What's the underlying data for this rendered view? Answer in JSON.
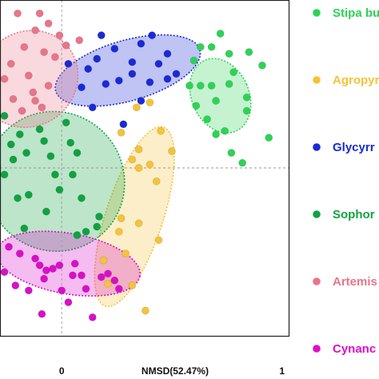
{
  "chart_data": {
    "type": "scatter",
    "xlabel": "NMSD(52.47%)",
    "x_ticks": [
      "0",
      "1"
    ],
    "xlim": [
      -0.28,
      1.03
    ],
    "ylim": [
      -1.0,
      1.0
    ],
    "reference_lines": {
      "x": 0,
      "y": 0
    },
    "grid": false,
    "legend_position": "right",
    "series": [
      {
        "name": "Stipa bu",
        "color": "#2ed356",
        "ellipse": {
          "cx": 0.72,
          "cy": 0.43,
          "rx": 0.13,
          "ry": 0.23,
          "angle": -24
        },
        "points": [
          [
            0.6,
            0.64
          ],
          [
            0.63,
            0.72
          ],
          [
            0.68,
            0.72
          ],
          [
            0.72,
            0.8
          ],
          [
            0.76,
            0.68
          ],
          [
            0.58,
            0.49
          ],
          [
            0.63,
            0.49
          ],
          [
            0.68,
            0.49
          ],
          [
            0.7,
            0.4
          ],
          [
            0.61,
            0.37
          ],
          [
            0.66,
            0.29
          ],
          [
            0.7,
            0.2
          ],
          [
            0.74,
            0.22
          ],
          [
            0.77,
            0.09
          ],
          [
            0.82,
            0.03
          ],
          [
            0.85,
            0.69
          ],
          [
            0.78,
            0.57
          ],
          [
            0.84,
            0.42
          ],
          [
            0.84,
            0.34
          ],
          [
            0.91,
            0.61
          ],
          [
            0.94,
            0.18
          ],
          [
            0.76,
            0.5
          ]
        ]
      },
      {
        "name": "Agropyr",
        "color": "#f4c33a",
        "ellipse": {
          "cx": 0.33,
          "cy": -0.29,
          "rx": 0.13,
          "ry": 0.56,
          "angle": 18
        },
        "points": [
          [
            0.27,
            0.21
          ],
          [
            0.35,
            0.11
          ],
          [
            0.34,
            0.36
          ],
          [
            0.4,
            0.39
          ],
          [
            0.45,
            0.22
          ],
          [
            0.4,
            0.02
          ],
          [
            0.32,
            0.05
          ],
          [
            0.35,
            0.0
          ],
          [
            0.5,
            0.1
          ],
          [
            0.35,
            -0.33
          ],
          [
            0.44,
            -0.43
          ],
          [
            0.27,
            -0.3
          ],
          [
            0.26,
            -0.38
          ],
          [
            0.32,
            -0.7
          ],
          [
            0.38,
            -0.85
          ],
          [
            0.19,
            -0.55
          ],
          [
            0.21,
            -0.69
          ],
          [
            0.29,
            -0.51
          ],
          [
            0.43,
            -0.08
          ]
        ]
      },
      {
        "name": "Glycyrr",
        "color": "#1a2ad6",
        "ellipse": {
          "cx": 0.3,
          "cy": 0.58,
          "rx": 0.34,
          "ry": 0.18,
          "angle": -16
        },
        "points": [
          [
            0.03,
            0.62
          ],
          [
            0.12,
            0.59
          ],
          [
            0.16,
            0.65
          ],
          [
            0.18,
            0.79
          ],
          [
            0.24,
            0.71
          ],
          [
            0.32,
            0.63
          ],
          [
            0.36,
            0.74
          ],
          [
            0.41,
            0.79
          ],
          [
            0.44,
            0.62
          ],
          [
            0.48,
            0.68
          ],
          [
            0.52,
            0.56
          ],
          [
            0.48,
            0.53
          ],
          [
            0.4,
            0.51
          ],
          [
            0.32,
            0.56
          ],
          [
            0.26,
            0.52
          ],
          [
            0.2,
            0.5
          ],
          [
            0.09,
            0.48
          ],
          [
            0.14,
            0.36
          ],
          [
            0.36,
            0.4
          ],
          [
            0.28,
            0.26
          ]
        ]
      },
      {
        "name": "Sophor",
        "color": "#10a241",
        "ellipse": {
          "cx": -0.03,
          "cy": -0.08,
          "rx": 0.32,
          "ry": 0.41,
          "angle": 52
        },
        "points": [
          [
            -0.23,
            0.14
          ],
          [
            -0.26,
            0.31
          ],
          [
            -0.19,
            0.2
          ],
          [
            -0.16,
            0.09
          ],
          [
            -0.22,
            0.05
          ],
          [
            -0.15,
            -0.16
          ],
          [
            -0.1,
            0.23
          ],
          [
            -0.05,
            0.07
          ],
          [
            -0.08,
            0.16
          ],
          [
            -0.03,
            -0.04
          ],
          [
            -0.01,
            -0.13
          ],
          [
            0.04,
            0.15
          ],
          [
            0.02,
            0.27
          ],
          [
            0.07,
            0.09
          ],
          [
            0.05,
            -0.04
          ],
          [
            0.09,
            -0.18
          ],
          [
            -0.07,
            -0.26
          ],
          [
            -0.2,
            -0.18
          ],
          [
            -0.17,
            -0.36
          ],
          [
            0.07,
            -0.4
          ],
          [
            0.11,
            -0.38
          ],
          [
            0.16,
            -0.35
          ],
          [
            0.17,
            -0.29
          ],
          [
            -0.26,
            -0.04
          ]
        ]
      },
      {
        "name": "Artemis",
        "color": "#e8758a",
        "ellipse": {
          "cx": -0.15,
          "cy": 0.53,
          "rx": 0.23,
          "ry": 0.28,
          "angle": -38
        },
        "points": [
          [
            -0.2,
            0.92
          ],
          [
            -0.1,
            0.92
          ],
          [
            -0.06,
            0.86
          ],
          [
            -0.01,
            0.79
          ],
          [
            -0.12,
            0.82
          ],
          [
            -0.17,
            0.72
          ],
          [
            -0.08,
            0.69
          ],
          [
            -0.03,
            0.66
          ],
          [
            -0.23,
            0.62
          ],
          [
            0.02,
            0.73
          ],
          [
            0.08,
            0.76
          ],
          [
            -0.15,
            0.55
          ],
          [
            -0.13,
            0.45
          ],
          [
            -0.18,
            0.34
          ],
          [
            -0.12,
            0.4
          ],
          [
            -0.06,
            0.49
          ],
          [
            -0.22,
            0.41
          ],
          [
            -0.26,
            0.53
          ],
          [
            -0.09,
            0.36
          ]
        ]
      },
      {
        "name": "Cynanc",
        "color": "#d90fc8",
        "ellipse": {
          "cx": 0.03,
          "cy": -0.57,
          "rx": 0.33,
          "ry": 0.18,
          "angle": 10
        },
        "points": [
          [
            -0.24,
            -0.47
          ],
          [
            -0.19,
            -0.51
          ],
          [
            -0.1,
            -0.58
          ],
          [
            -0.07,
            -0.61
          ],
          [
            -0.04,
            -0.6
          ],
          [
            -0.01,
            -0.58
          ],
          [
            0.05,
            -0.64
          ],
          [
            0.09,
            -0.64
          ],
          [
            0.11,
            -0.72
          ],
          [
            0.18,
            -0.65
          ],
          [
            0.21,
            -0.63
          ],
          [
            0.24,
            -0.67
          ],
          [
            0.26,
            -0.72
          ],
          [
            0.0,
            -0.73
          ],
          [
            -0.08,
            -0.66
          ],
          [
            -0.09,
            -0.87
          ],
          [
            -0.15,
            -0.73
          ],
          [
            0.14,
            -0.89
          ],
          [
            0.03,
            -0.8
          ],
          [
            -0.21,
            -0.7
          ],
          [
            -0.26,
            -0.62
          ],
          [
            -0.12,
            -0.54
          ],
          [
            0.06,
            -0.57
          ]
        ]
      }
    ]
  }
}
